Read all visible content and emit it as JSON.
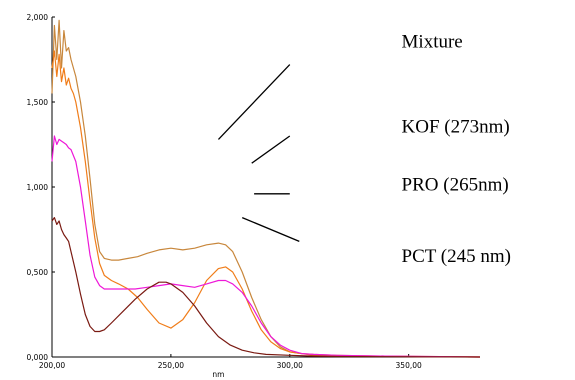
{
  "chart_data": {
    "type": "line",
    "xlabel": "nm",
    "ylabel": "",
    "xlim": [
      200,
      380
    ],
    "ylim": [
      0,
      2.0
    ],
    "grid": false,
    "x_ticks": [
      {
        "value": 200,
        "label": "200,00"
      },
      {
        "value": 250,
        "label": "250,00"
      },
      {
        "value": 300,
        "label": "300,00"
      },
      {
        "value": 350,
        "label": "350,00"
      }
    ],
    "y_ticks": [
      {
        "value": 0.0,
        "label": "0,000"
      },
      {
        "value": 0.5,
        "label": "0,500"
      },
      {
        "value": 1.0,
        "label": "1,000"
      },
      {
        "value": 1.5,
        "label": "1,500"
      },
      {
        "value": 2.0,
        "label": "2,000"
      }
    ],
    "annotations": [
      {
        "label": "Mixture",
        "x_data": 347,
        "y_data": 1.82
      },
      {
        "label": "KOF (273nm)",
        "x_data": 347,
        "y_data": 1.32
      },
      {
        "label": "PRO (265nm)",
        "x_data": 347,
        "y_data": 0.98
      },
      {
        "label": "PCT  (245 nm)",
        "x_data": 347,
        "y_data": 0.56
      }
    ],
    "leader_lines": [
      {
        "x1": 270,
        "y1": 1.28,
        "x2": 300,
        "y2": 1.72
      },
      {
        "x1": 284,
        "y1": 1.14,
        "x2": 300,
        "y2": 1.3
      },
      {
        "x1": 285,
        "y1": 0.96,
        "x2": 300,
        "y2": 0.96
      },
      {
        "x1": 280,
        "y1": 0.82,
        "x2": 304,
        "y2": 0.68
      }
    ],
    "series": [
      {
        "color": "#c8873c",
        "x": [
          200,
          201,
          202,
          203,
          204,
          205,
          206,
          207,
          208,
          209,
          210,
          212,
          214,
          216,
          218,
          220,
          222,
          225,
          228,
          232,
          236,
          240,
          245,
          250,
          255,
          260,
          265,
          270,
          273,
          276,
          280,
          284,
          288,
          292,
          296,
          300,
          305,
          310,
          320,
          340,
          380
        ],
        "y": [
          1.55,
          1.95,
          1.75,
          1.98,
          1.7,
          1.92,
          1.8,
          1.82,
          1.75,
          1.7,
          1.65,
          1.5,
          1.3,
          1.05,
          0.78,
          0.62,
          0.58,
          0.57,
          0.57,
          0.58,
          0.59,
          0.61,
          0.63,
          0.64,
          0.63,
          0.64,
          0.66,
          0.67,
          0.66,
          0.62,
          0.5,
          0.35,
          0.22,
          0.12,
          0.06,
          0.03,
          0.02,
          0.015,
          0.01,
          0.005,
          0.0
        ]
      },
      {
        "color": "#f07d1a",
        "x": [
          200,
          201,
          202,
          203,
          204,
          205,
          206,
          207,
          208,
          209,
          210,
          212,
          214,
          216,
          218,
          220,
          222,
          225,
          228,
          232,
          236,
          240,
          245,
          250,
          255,
          260,
          265,
          270,
          273,
          276,
          280,
          284,
          288,
          292,
          296,
          300,
          305,
          310,
          320,
          340,
          380
        ],
        "y": [
          1.7,
          1.8,
          1.65,
          1.78,
          1.62,
          1.7,
          1.6,
          1.64,
          1.58,
          1.55,
          1.5,
          1.35,
          1.15,
          0.92,
          0.7,
          0.55,
          0.48,
          0.45,
          0.43,
          0.4,
          0.35,
          0.28,
          0.2,
          0.17,
          0.22,
          0.32,
          0.45,
          0.52,
          0.53,
          0.5,
          0.4,
          0.27,
          0.16,
          0.09,
          0.05,
          0.03,
          0.02,
          0.01,
          0.008,
          0.004,
          0.0
        ]
      },
      {
        "color": "#ee18d8",
        "x": [
          200,
          201,
          202,
          203,
          204,
          205,
          206,
          207,
          208,
          210,
          212,
          214,
          216,
          218,
          220,
          222,
          225,
          230,
          235,
          240,
          245,
          250,
          255,
          260,
          265,
          270,
          273,
          276,
          280,
          284,
          288,
          292,
          296,
          300,
          305,
          310,
          320,
          340,
          380
        ],
        "y": [
          1.15,
          1.3,
          1.25,
          1.28,
          1.27,
          1.26,
          1.25,
          1.23,
          1.22,
          1.15,
          1.0,
          0.8,
          0.6,
          0.47,
          0.42,
          0.4,
          0.4,
          0.4,
          0.4,
          0.41,
          0.42,
          0.43,
          0.42,
          0.41,
          0.43,
          0.45,
          0.45,
          0.43,
          0.38,
          0.3,
          0.2,
          0.12,
          0.07,
          0.04,
          0.02,
          0.015,
          0.01,
          0.005,
          0.0
        ]
      },
      {
        "color": "#7a1a12",
        "x": [
          200,
          201,
          202,
          203,
          204,
          205,
          206,
          207,
          208,
          210,
          212,
          214,
          216,
          218,
          220,
          222,
          225,
          230,
          235,
          240,
          245,
          248,
          250,
          255,
          260,
          265,
          270,
          275,
          280,
          285,
          290,
          300,
          310,
          320,
          340,
          380
        ],
        "y": [
          0.8,
          0.82,
          0.78,
          0.8,
          0.75,
          0.72,
          0.7,
          0.68,
          0.62,
          0.5,
          0.37,
          0.25,
          0.18,
          0.15,
          0.15,
          0.16,
          0.2,
          0.27,
          0.34,
          0.4,
          0.44,
          0.44,
          0.43,
          0.38,
          0.3,
          0.2,
          0.12,
          0.07,
          0.04,
          0.025,
          0.015,
          0.01,
          0.005,
          0.003,
          0.002,
          0.0
        ]
      }
    ]
  }
}
